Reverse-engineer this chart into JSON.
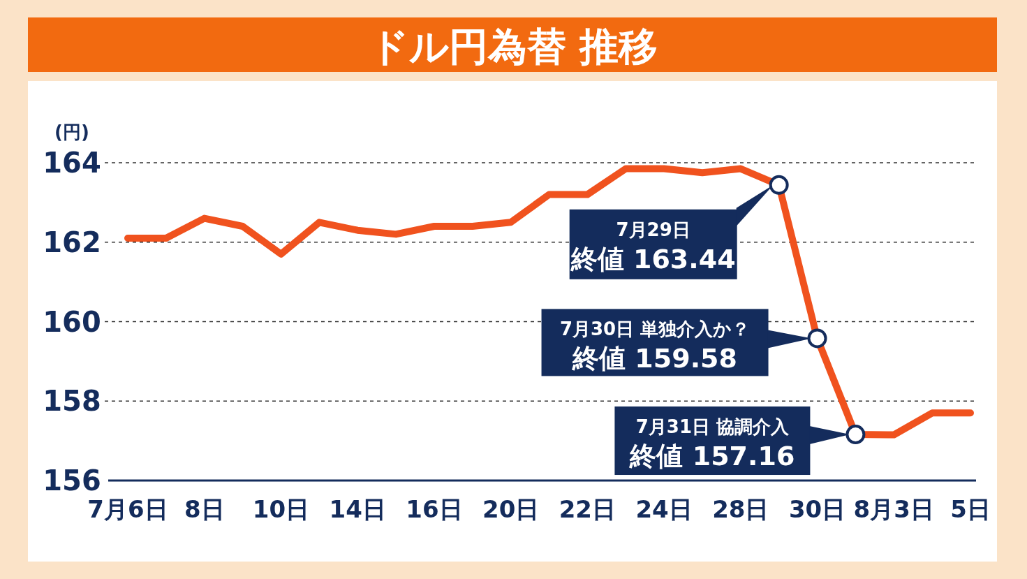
{
  "chart_data": {
    "type": "line",
    "title": "ドル円為替  推移",
    "ylabel": "(円)",
    "categories": [
      "7月6日",
      null,
      "8日",
      null,
      "10日",
      null,
      "14日",
      null,
      "16日",
      null,
      "20日",
      null,
      "22日",
      null,
      "24日",
      null,
      "28日",
      null,
      "30日",
      null,
      "8月3日",
      null,
      "5日"
    ],
    "series": [
      {
        "color": "#f0521e",
        "values": [
          162.1,
          162.1,
          162.6,
          162.4,
          161.7,
          162.5,
          162.3,
          162.2,
          162.4,
          162.4,
          162.5,
          163.2,
          163.2,
          163.85,
          163.85,
          163.75,
          163.85,
          163.44,
          159.58,
          157.16,
          157.15,
          157.7,
          157.7
        ]
      }
    ],
    "ylim": [
      156,
      164
    ],
    "yticks": [
      156,
      158,
      160,
      162,
      164
    ],
    "grid": "y",
    "annotations": [
      "7月29日",
      "終値 163.44",
      "7月30日 単独介入か？",
      "終値 159.58",
      "7月31日 協調介入",
      "終値 157.16"
    ]
  }
}
